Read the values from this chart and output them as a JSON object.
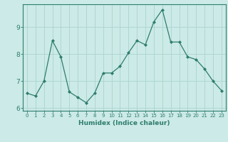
{
  "x": [
    0,
    1,
    2,
    3,
    4,
    5,
    6,
    7,
    8,
    9,
    10,
    11,
    12,
    13,
    14,
    15,
    16,
    17,
    18,
    19,
    20,
    21,
    22,
    23
  ],
  "y": [
    6.55,
    6.45,
    7.0,
    8.5,
    7.9,
    6.6,
    6.4,
    6.2,
    6.55,
    7.3,
    7.3,
    7.55,
    8.05,
    8.5,
    8.35,
    9.2,
    9.65,
    8.45,
    8.45,
    7.9,
    7.8,
    7.45,
    7.0,
    6.65
  ],
  "line_color": "#2e7d6e",
  "marker": "D",
  "marker_size": 2.0,
  "bg_color": "#cceae7",
  "grid_color": "#aad4d0",
  "xlabel": "Humidex (Indice chaleur)",
  "ylabel": "",
  "xlim": [
    -0.5,
    23.5
  ],
  "ylim": [
    5.9,
    9.85
  ],
  "yticks": [
    6,
    7,
    8,
    9
  ],
  "xticks": [
    0,
    1,
    2,
    3,
    4,
    5,
    6,
    7,
    8,
    9,
    10,
    11,
    12,
    13,
    14,
    15,
    16,
    17,
    18,
    19,
    20,
    21,
    22,
    23
  ],
  "tick_color": "#2e7d6e",
  "label_color": "#2e7d6e",
  "xlabel_fontsize": 6.5,
  "xtick_fontsize": 5.0,
  "ytick_fontsize": 6.5
}
